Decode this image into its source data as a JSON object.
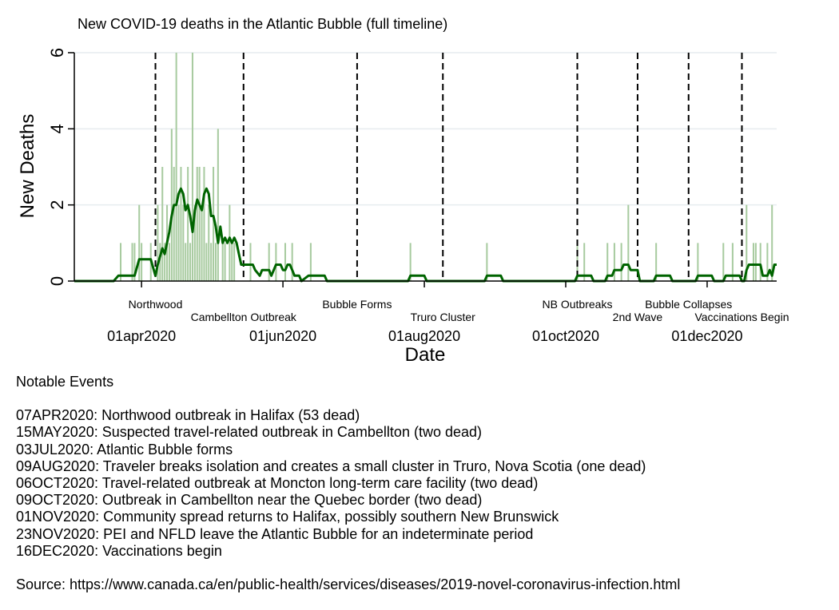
{
  "chart_data": {
    "type": "bar",
    "title": "New COVID-19 deaths in the Atlantic Bubble (full timeline)",
    "xlabel": "Date",
    "ylabel": "New Deaths",
    "ylim": [
      0,
      6
    ],
    "y_ticks": [
      0,
      2,
      4,
      6
    ],
    "x_ticks": [
      "01apr2020",
      "01jun2020",
      "01aug2020",
      "01oct2020",
      "01dec2020"
    ],
    "x_tick_dates": [
      "2020-04-01",
      "2020-06-01",
      "2020-08-01",
      "2020-10-01",
      "2020-12-01"
    ],
    "x_range": [
      "2020-03-03",
      "2020-12-31"
    ],
    "grid": "horizontal",
    "colors": {
      "bars": "#a8cba0",
      "line": "#006400",
      "event_lines": "#000000",
      "grid": "#e6ecef"
    },
    "daily_deaths": [
      [
        "2020-03-23",
        1
      ],
      [
        "2020-03-28",
        1
      ],
      [
        "2020-03-29",
        1
      ],
      [
        "2020-03-31",
        2
      ],
      [
        "2020-04-01",
        1
      ],
      [
        "2020-04-05",
        1
      ],
      [
        "2020-04-08",
        2
      ],
      [
        "2020-04-09",
        1
      ],
      [
        "2020-04-10",
        3
      ],
      [
        "2020-04-11",
        1
      ],
      [
        "2020-04-12",
        2
      ],
      [
        "2020-04-13",
        1
      ],
      [
        "2020-04-14",
        4
      ],
      [
        "2020-04-15",
        3
      ],
      [
        "2020-04-16",
        6
      ],
      [
        "2020-04-17",
        2
      ],
      [
        "2020-04-18",
        3
      ],
      [
        "2020-04-19",
        2
      ],
      [
        "2020-04-20",
        1
      ],
      [
        "2020-04-21",
        3
      ],
      [
        "2020-04-22",
        1
      ],
      [
        "2020-04-23",
        6
      ],
      [
        "2020-04-24",
        2
      ],
      [
        "2020-04-25",
        3
      ],
      [
        "2020-04-26",
        3
      ],
      [
        "2020-04-27",
        2
      ],
      [
        "2020-04-28",
        3
      ],
      [
        "2020-04-29",
        1
      ],
      [
        "2020-04-30",
        2
      ],
      [
        "2020-05-01",
        1
      ],
      [
        "2020-05-02",
        3
      ],
      [
        "2020-05-03",
        1
      ],
      [
        "2020-05-04",
        4
      ],
      [
        "2020-05-06",
        1
      ],
      [
        "2020-05-07",
        1
      ],
      [
        "2020-05-09",
        2
      ],
      [
        "2020-05-10",
        1
      ],
      [
        "2020-05-11",
        1
      ],
      [
        "2020-05-18",
        1
      ],
      [
        "2020-05-26",
        1
      ],
      [
        "2020-05-29",
        1
      ],
      [
        "2020-06-02",
        1
      ],
      [
        "2020-06-05",
        1
      ],
      [
        "2020-06-13",
        1
      ],
      [
        "2020-07-26",
        1
      ],
      [
        "2020-08-28",
        1
      ],
      [
        "2020-10-06",
        1
      ],
      [
        "2020-10-09",
        1
      ],
      [
        "2020-10-19",
        1
      ],
      [
        "2020-10-22",
        1
      ],
      [
        "2020-10-25",
        1
      ],
      [
        "2020-10-28",
        2
      ],
      [
        "2020-11-09",
        1
      ],
      [
        "2020-11-27",
        1
      ],
      [
        "2020-12-08",
        1
      ],
      [
        "2020-12-12",
        1
      ],
      [
        "2020-12-18",
        2
      ],
      [
        "2020-12-21",
        1
      ],
      [
        "2020-12-22",
        1
      ],
      [
        "2020-12-24",
        1
      ],
      [
        "2020-12-27",
        1
      ],
      [
        "2020-12-29",
        2
      ]
    ],
    "moving_average": [
      [
        "2020-03-03",
        0
      ],
      [
        "2020-03-20",
        0
      ],
      [
        "2020-03-22",
        0.14
      ],
      [
        "2020-03-29",
        0.14
      ],
      [
        "2020-03-31",
        0.57
      ],
      [
        "2020-04-05",
        0.57
      ],
      [
        "2020-04-07",
        0.14
      ],
      [
        "2020-04-08",
        0.43
      ],
      [
        "2020-04-10",
        0.86
      ],
      [
        "2020-04-11",
        0.71
      ],
      [
        "2020-04-12",
        1.0
      ],
      [
        "2020-04-13",
        1.29
      ],
      [
        "2020-04-14",
        1.71
      ],
      [
        "2020-04-15",
        2.0
      ],
      [
        "2020-04-16",
        2.0
      ],
      [
        "2020-04-17",
        2.29
      ],
      [
        "2020-04-18",
        2.43
      ],
      [
        "2020-04-19",
        2.29
      ],
      [
        "2020-04-20",
        1.86
      ],
      [
        "2020-04-21",
        2.0
      ],
      [
        "2020-04-22",
        1.71
      ],
      [
        "2020-04-23",
        1.29
      ],
      [
        "2020-04-24",
        1.86
      ],
      [
        "2020-04-25",
        2.14
      ],
      [
        "2020-04-26",
        2.0
      ],
      [
        "2020-04-27",
        1.86
      ],
      [
        "2020-04-28",
        2.29
      ],
      [
        "2020-04-29",
        2.43
      ],
      [
        "2020-04-30",
        2.29
      ],
      [
        "2020-05-01",
        1.71
      ],
      [
        "2020-05-02",
        1.71
      ],
      [
        "2020-05-03",
        1.43
      ],
      [
        "2020-05-04",
        1.0
      ],
      [
        "2020-05-05",
        1.43
      ],
      [
        "2020-05-06",
        1.0
      ],
      [
        "2020-05-07",
        1.14
      ],
      [
        "2020-05-08",
        1.0
      ],
      [
        "2020-05-09",
        1.14
      ],
      [
        "2020-05-10",
        1.0
      ],
      [
        "2020-05-11",
        1.14
      ],
      [
        "2020-05-12",
        1.0
      ],
      [
        "2020-05-13",
        0.71
      ],
      [
        "2020-05-14",
        0.43
      ],
      [
        "2020-05-19",
        0.43
      ],
      [
        "2020-05-20",
        0.29
      ],
      [
        "2020-05-22",
        0.14
      ],
      [
        "2020-05-23",
        0.29
      ],
      [
        "2020-05-26",
        0.29
      ],
      [
        "2020-05-27",
        0.14
      ],
      [
        "2020-05-29",
        0.43
      ],
      [
        "2020-05-31",
        0.43
      ],
      [
        "2020-06-01",
        0.29
      ],
      [
        "2020-06-02",
        0.29
      ],
      [
        "2020-06-03",
        0.43
      ],
      [
        "2020-06-04",
        0.43
      ],
      [
        "2020-06-05",
        0.29
      ],
      [
        "2020-06-06",
        0.14
      ],
      [
        "2020-06-08",
        0.14
      ],
      [
        "2020-06-09",
        0.0
      ],
      [
        "2020-06-12",
        0.14
      ],
      [
        "2020-06-19",
        0.14
      ],
      [
        "2020-06-20",
        0.0
      ],
      [
        "2020-07-25",
        0.0
      ],
      [
        "2020-07-26",
        0.14
      ],
      [
        "2020-08-01",
        0.14
      ],
      [
        "2020-08-02",
        0.0
      ],
      [
        "2020-08-27",
        0.0
      ],
      [
        "2020-08-28",
        0.14
      ],
      [
        "2020-09-03",
        0.14
      ],
      [
        "2020-09-04",
        0.0
      ],
      [
        "2020-10-05",
        0.0
      ],
      [
        "2020-10-06",
        0.14
      ],
      [
        "2020-10-12",
        0.14
      ],
      [
        "2020-10-13",
        0.0
      ],
      [
        "2020-10-18",
        0.0
      ],
      [
        "2020-10-19",
        0.14
      ],
      [
        "2020-10-21",
        0.14
      ],
      [
        "2020-10-22",
        0.29
      ],
      [
        "2020-10-25",
        0.29
      ],
      [
        "2020-10-26",
        0.43
      ],
      [
        "2020-10-28",
        0.43
      ],
      [
        "2020-10-29",
        0.29
      ],
      [
        "2020-11-01",
        0.29
      ],
      [
        "2020-11-02",
        0.0
      ],
      [
        "2020-11-08",
        0.0
      ],
      [
        "2020-11-09",
        0.14
      ],
      [
        "2020-11-15",
        0.14
      ],
      [
        "2020-11-16",
        0.0
      ],
      [
        "2020-11-26",
        0.0
      ],
      [
        "2020-11-27",
        0.14
      ],
      [
        "2020-12-03",
        0.14
      ],
      [
        "2020-12-04",
        0.0
      ],
      [
        "2020-12-08",
        0.0
      ],
      [
        "2020-12-09",
        0.14
      ],
      [
        "2020-12-15",
        0.14
      ],
      [
        "2020-12-16",
        0.0
      ],
      [
        "2020-12-17",
        0.0
      ],
      [
        "2020-12-18",
        0.29
      ],
      [
        "2020-12-19",
        0.43
      ],
      [
        "2020-12-24",
        0.43
      ],
      [
        "2020-12-25",
        0.14
      ],
      [
        "2020-12-27",
        0.14
      ],
      [
        "2020-12-28",
        0.29
      ],
      [
        "2020-12-29",
        0.14
      ],
      [
        "2020-12-30",
        0.43
      ],
      [
        "2020-12-31",
        0.43
      ]
    ],
    "events": [
      {
        "date": "2020-04-07",
        "label": "Northwood",
        "row": 1
      },
      {
        "date": "2020-05-15",
        "label": "Cambellton Outbreak",
        "row": 2
      },
      {
        "date": "2020-07-03",
        "label": "Bubble Forms",
        "row": 1
      },
      {
        "date": "2020-08-09",
        "label": "Truro Cluster",
        "row": 2
      },
      {
        "date": "2020-10-06",
        "label": "NB Outbreaks",
        "row": 1
      },
      {
        "date": "2020-11-01",
        "label": "2nd Wave",
        "row": 2
      },
      {
        "date": "2020-11-23",
        "label": "Bubble Collapses",
        "row": 1
      },
      {
        "date": "2020-12-16",
        "label": "Vaccinations Begin",
        "row": 2
      }
    ]
  },
  "notes": {
    "heading": "Notable Events",
    "items": [
      "07APR2020: Northwood outbreak in Halifax (53 dead)",
      "15MAY2020: Suspected travel-related outbreak in Cambellton (two dead)",
      "03JUL2020: Atlantic Bubble forms",
      "09AUG2020: Traveler breaks isolation and creates a small cluster in Truro, Nova Scotia (one dead)",
      "06OCT2020: Travel-related outbreak at Moncton long-term care facility (two dead)",
      "09OCT2020: Outbreak in Cambellton near the Quebec border (two dead)",
      "01NOV2020: Community spread returns to Halifax, possibly southern New Brunswick",
      "23NOV2020: PEI and NFLD leave the Atlantic Bubble for an indeterminate period",
      "16DEC2020: Vaccinations begin"
    ],
    "source": "Source: https://www.canada.ca/en/public-health/services/diseases/2019-novel-coronavirus-infection.html"
  }
}
